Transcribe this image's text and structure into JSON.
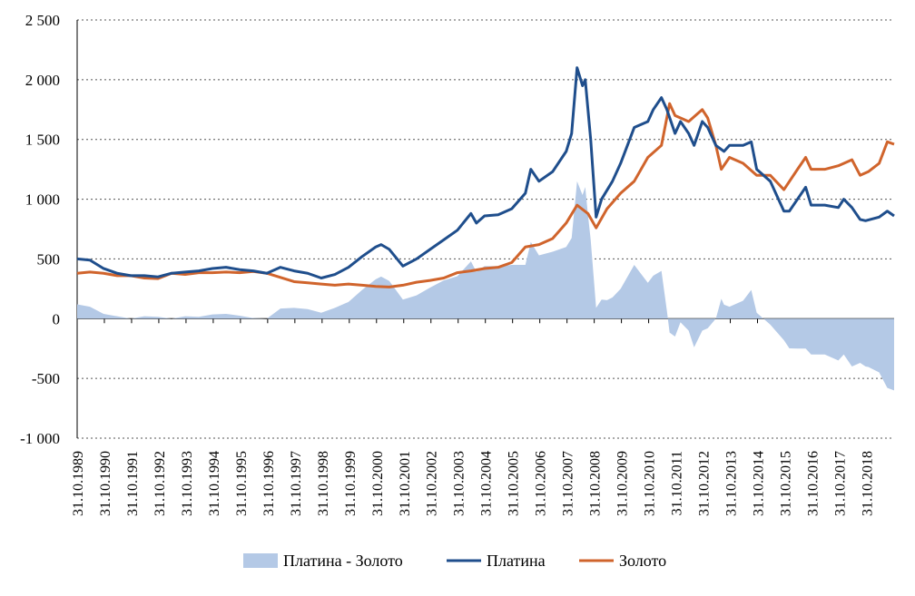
{
  "chart_data": {
    "type": "line",
    "title": "",
    "xlabel": "",
    "ylabel": "",
    "ylim": [
      -1000,
      2500
    ],
    "yticks": [
      2500,
      2000,
      1500,
      1000,
      500,
      0,
      -500,
      -1000
    ],
    "ytick_labels": [
      "2 500",
      "2 000",
      "1 500",
      "1 000",
      "500",
      "0",
      "-500",
      "-1 000"
    ],
    "xlim": [
      1989.83,
      2019.85
    ],
    "xtick_labels": [
      "31.10.1989",
      "31.10.1990",
      "31.10.1991",
      "31.10.1992",
      "31.10.1993",
      "31.10.1994",
      "31.10.1995",
      "31.10.1996",
      "31.10.1997",
      "31.10.1998",
      "31.10.1999",
      "31.10.2000",
      "31.10.2001",
      "31.10.2002",
      "31.10.2003",
      "31.10.2004",
      "31.10.2005",
      "31.10.2006",
      "31.10.2007",
      "31.10.2008",
      "31.10.2009",
      "31.10.2010",
      "31.10.2011",
      "31.10.2012",
      "31.10.2013",
      "31.10.2014",
      "31.10.2015",
      "31.10.2016",
      "31.10.2017",
      "31.10.2018"
    ],
    "grid": "horizontal dotted",
    "legend_position": "bottom",
    "series": [
      {
        "name": "Платина - Золото",
        "kind": "area",
        "color": "#B4C9E6",
        "derived_from": "Платина minus Золото"
      },
      {
        "name": "Платина",
        "kind": "line",
        "color": "#1F4E8C",
        "x": [
          1989.83,
          1990.3,
          1990.8,
          1991.3,
          1991.8,
          1992.3,
          1992.8,
          1993.3,
          1993.8,
          1994.3,
          1994.8,
          1995.3,
          1995.8,
          1996.3,
          1996.8,
          1997.3,
          1997.8,
          1998.3,
          1998.8,
          1999.3,
          1999.8,
          2000.3,
          2000.8,
          2001.0,
          2001.3,
          2001.8,
          2002.3,
          2002.8,
          2003.3,
          2003.8,
          2004.3,
          2004.5,
          2004.8,
          2005.3,
          2005.8,
          2006.3,
          2006.5,
          2006.8,
          2007.3,
          2007.8,
          2008.0,
          2008.2,
          2008.4,
          2008.5,
          2008.7,
          2008.9,
          2009.1,
          2009.5,
          2009.8,
          2010.3,
          2010.8,
          2011.0,
          2011.3,
          2011.5,
          2011.8,
          2012.0,
          2012.3,
          2012.5,
          2012.8,
          2013.0,
          2013.3,
          2013.6,
          2013.8,
          2014.3,
          2014.6,
          2014.8,
          2015.3,
          2015.5,
          2015.8,
          2016.0,
          2016.3,
          2016.6,
          2016.8,
          2017.3,
          2017.8,
          2018.0,
          2018.3,
          2018.6,
          2018.8,
          2019.3,
          2019.6,
          2019.85
        ],
        "y": [
          500,
          490,
          420,
          380,
          360,
          360,
          350,
          380,
          390,
          400,
          420,
          430,
          410,
          400,
          380,
          430,
          400,
          380,
          340,
          370,
          430,
          520,
          600,
          620,
          580,
          440,
          500,
          580,
          660,
          740,
          880,
          800,
          860,
          870,
          920,
          1050,
          1250,
          1150,
          1230,
          1400,
          1550,
          2100,
          1950,
          2000,
          1500,
          850,
          1000,
          1150,
          1300,
          1600,
          1650,
          1750,
          1850,
          1750,
          1550,
          1650,
          1550,
          1450,
          1650,
          1600,
          1450,
          1400,
          1450,
          1450,
          1480,
          1250,
          1150,
          1050,
          900,
          900,
          1000,
          1100,
          950,
          950,
          930,
          1000,
          930,
          830,
          820,
          850,
          900,
          860
        ]
      },
      {
        "name": "Золото",
        "kind": "line",
        "color": "#D0642C",
        "x": [
          1989.83,
          1990.3,
          1990.8,
          1991.3,
          1991.8,
          1992.3,
          1992.8,
          1993.3,
          1993.8,
          1994.3,
          1994.8,
          1995.3,
          1995.8,
          1996.3,
          1996.8,
          1997.3,
          1997.8,
          1998.3,
          1998.8,
          1999.3,
          1999.8,
          2000.3,
          2000.8,
          2001.3,
          2001.8,
          2002.3,
          2002.8,
          2003.3,
          2003.8,
          2004.3,
          2004.8,
          2005.3,
          2005.8,
          2006.3,
          2006.8,
          2007.3,
          2007.8,
          2008.2,
          2008.6,
          2008.9,
          2009.3,
          2009.8,
          2010.3,
          2010.8,
          2011.3,
          2011.6,
          2011.8,
          2012.3,
          2012.8,
          2013.0,
          2013.3,
          2013.5,
          2013.8,
          2014.3,
          2014.8,
          2015.3,
          2015.8,
          2016.3,
          2016.6,
          2016.8,
          2017.3,
          2017.8,
          2018.3,
          2018.6,
          2018.9,
          2019.3,
          2019.6,
          2019.85
        ],
        "y": [
          380,
          390,
          380,
          360,
          360,
          340,
          335,
          380,
          370,
          385,
          385,
          390,
          385,
          395,
          380,
          345,
          310,
          300,
          290,
          280,
          290,
          280,
          270,
          265,
          280,
          305,
          320,
          340,
          385,
          400,
          420,
          430,
          470,
          600,
          620,
          670,
          800,
          950,
          880,
          760,
          920,
          1050,
          1150,
          1350,
          1450,
          1800,
          1700,
          1650,
          1750,
          1680,
          1450,
          1250,
          1350,
          1300,
          1200,
          1200,
          1080,
          1250,
          1350,
          1250,
          1250,
          1280,
          1330,
          1200,
          1230,
          1300,
          1480,
          1460
        ]
      }
    ]
  }
}
